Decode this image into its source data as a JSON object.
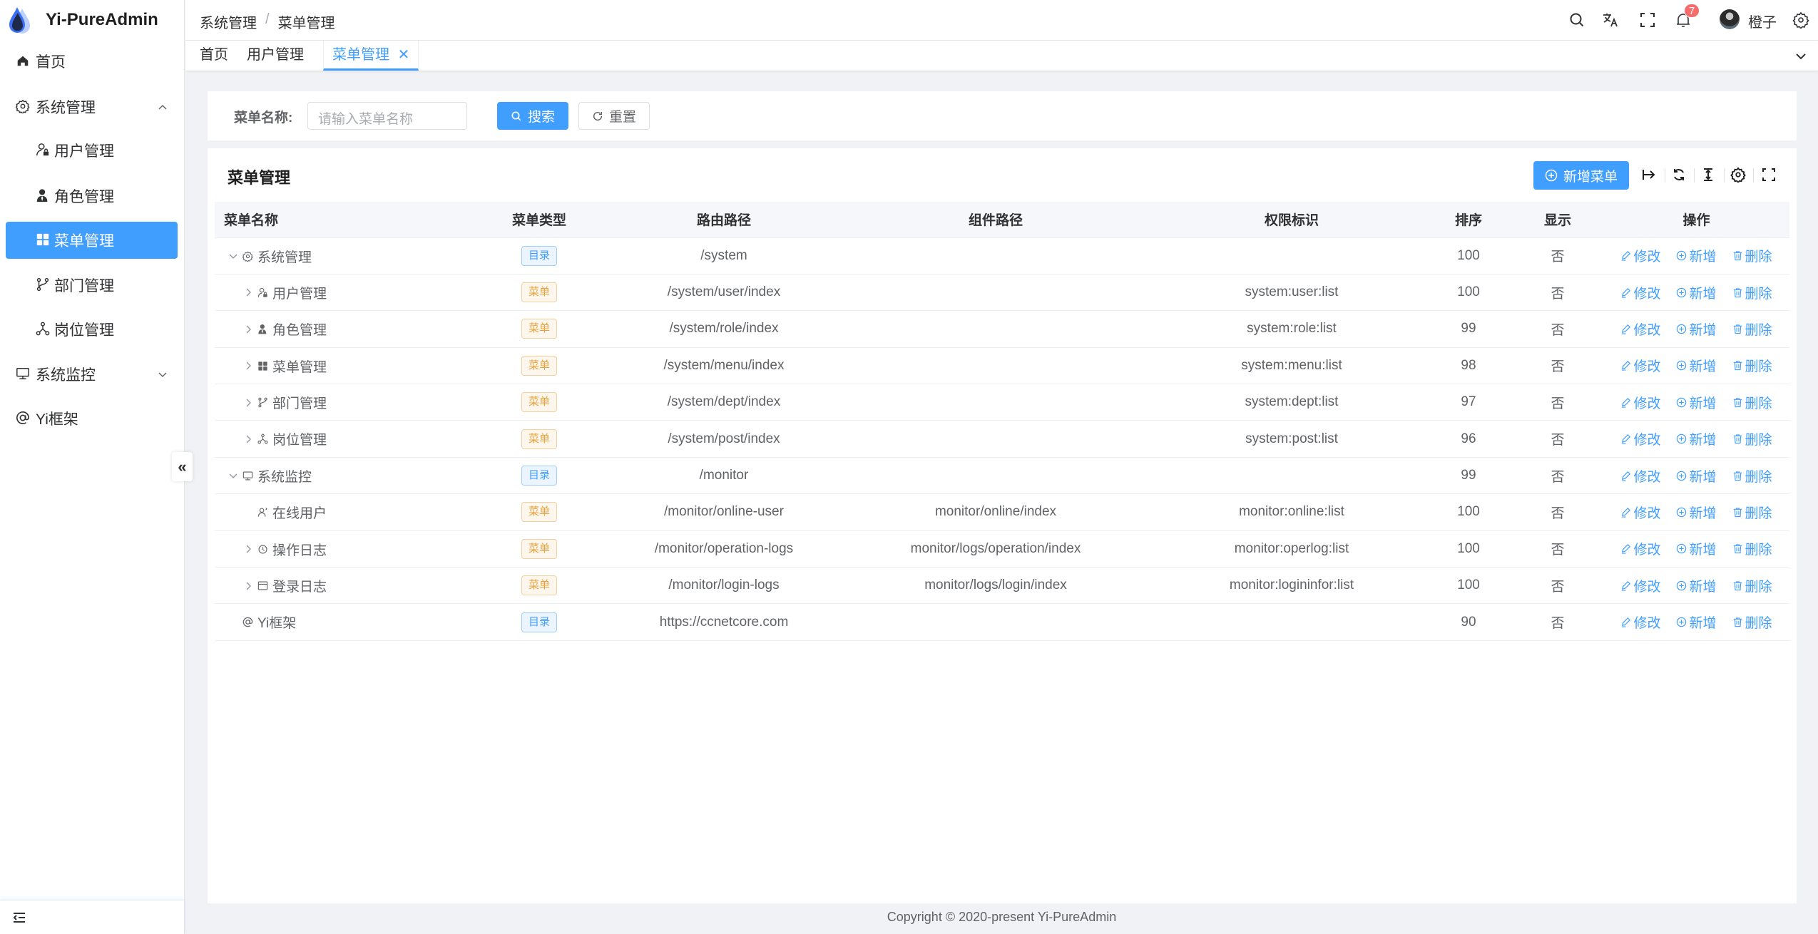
{
  "app": {
    "title": "Yi-PureAdmin"
  },
  "sidebar": {
    "items": [
      {
        "label": "首页",
        "icon": "home-icon"
      },
      {
        "label": "系统管理",
        "icon": "gear-icon",
        "expanded": true
      },
      {
        "label": "用户管理",
        "icon": "user-lock-icon"
      },
      {
        "label": "角色管理",
        "icon": "user-role-icon"
      },
      {
        "label": "菜单管理",
        "icon": "grid-icon",
        "active": true
      },
      {
        "label": "部门管理",
        "icon": "branch-icon"
      },
      {
        "label": "岗位管理",
        "icon": "hierarchy-icon"
      },
      {
        "label": "系统监控",
        "icon": "monitor-icon",
        "expanded": false
      },
      {
        "label": "Yi框架",
        "icon": "at-icon"
      }
    ],
    "collapse_label": "«"
  },
  "header": {
    "breadcrumb": [
      "系统管理",
      "菜单管理"
    ],
    "separator": "/",
    "notifications": "7",
    "username": "橙子"
  },
  "tabs": [
    {
      "label": "首页"
    },
    {
      "label": "用户管理"
    },
    {
      "label": "菜单管理",
      "active": true
    }
  ],
  "search": {
    "label": "菜单名称:",
    "placeholder": "请输入菜单名称",
    "search_label": "搜索",
    "reset_label": "重置"
  },
  "table": {
    "title": "菜单管理",
    "add_label": "新增菜单",
    "columns": [
      "菜单名称",
      "菜单类型",
      "路由路径",
      "组件路径",
      "权限标识",
      "排序",
      "显示",
      "操作"
    ],
    "actions": {
      "edit": "修改",
      "add": "新增",
      "delete": "删除"
    },
    "rows": [
      {
        "name": "系统管理",
        "icon": "gear-icon",
        "level": 0,
        "expander": "down",
        "type": "目录",
        "path": "/system",
        "component": "",
        "perms": "",
        "sort": "100",
        "visible": "否"
      },
      {
        "name": "用户管理",
        "icon": "user-lock-icon",
        "level": 1,
        "expander": "right",
        "type": "菜单",
        "path": "/system/user/index",
        "component": "",
        "perms": "system:user:list",
        "sort": "100",
        "visible": "否"
      },
      {
        "name": "角色管理",
        "icon": "user-role-icon",
        "level": 1,
        "expander": "right",
        "type": "菜单",
        "path": "/system/role/index",
        "component": "",
        "perms": "system:role:list",
        "sort": "99",
        "visible": "否"
      },
      {
        "name": "菜单管理",
        "icon": "grid-icon",
        "level": 1,
        "expander": "right",
        "type": "菜单",
        "path": "/system/menu/index",
        "component": "",
        "perms": "system:menu:list",
        "sort": "98",
        "visible": "否"
      },
      {
        "name": "部门管理",
        "icon": "branch-icon",
        "level": 1,
        "expander": "right",
        "type": "菜单",
        "path": "/system/dept/index",
        "component": "",
        "perms": "system:dept:list",
        "sort": "97",
        "visible": "否"
      },
      {
        "name": "岗位管理",
        "icon": "hierarchy-icon",
        "level": 1,
        "expander": "right",
        "type": "菜单",
        "path": "/system/post/index",
        "component": "",
        "perms": "system:post:list",
        "sort": "96",
        "visible": "否"
      },
      {
        "name": "系统监控",
        "icon": "monitor-icon",
        "level": 0,
        "expander": "down",
        "type": "目录",
        "path": "/monitor",
        "component": "",
        "perms": "",
        "sort": "99",
        "visible": "否"
      },
      {
        "name": "在线用户",
        "icon": "online-user-icon",
        "level": 1,
        "expander": "",
        "type": "菜单",
        "path": "/monitor/online-user",
        "component": "monitor/online/index",
        "perms": "monitor:online:list",
        "sort": "100",
        "visible": "否"
      },
      {
        "name": "操作日志",
        "icon": "history-icon",
        "level": 1,
        "expander": "right",
        "type": "菜单",
        "path": "/monitor/operation-logs",
        "component": "monitor/logs/operation/index",
        "perms": "monitor:operlog:list",
        "sort": "100",
        "visible": "否"
      },
      {
        "name": "登录日志",
        "icon": "window-icon",
        "level": 1,
        "expander": "right",
        "type": "菜单",
        "path": "/monitor/login-logs",
        "component": "monitor/logs/login/index",
        "perms": "monitor:logininfor:list",
        "sort": "100",
        "visible": "否"
      },
      {
        "name": "Yi框架",
        "icon": "at-icon",
        "level": 0,
        "expander": "",
        "type": "目录",
        "path": "https://ccnetcore.com",
        "component": "",
        "perms": "",
        "sort": "90",
        "visible": "否"
      }
    ]
  },
  "footer": {
    "copyright": "Copyright © 2020-present Yi-PureAdmin"
  },
  "colors": {
    "primary": "#409eff",
    "directory_tag": "#409eff",
    "menu_tag": "#e6a23c",
    "badge": "#f56c6c",
    "background": "#f0f2f5"
  }
}
